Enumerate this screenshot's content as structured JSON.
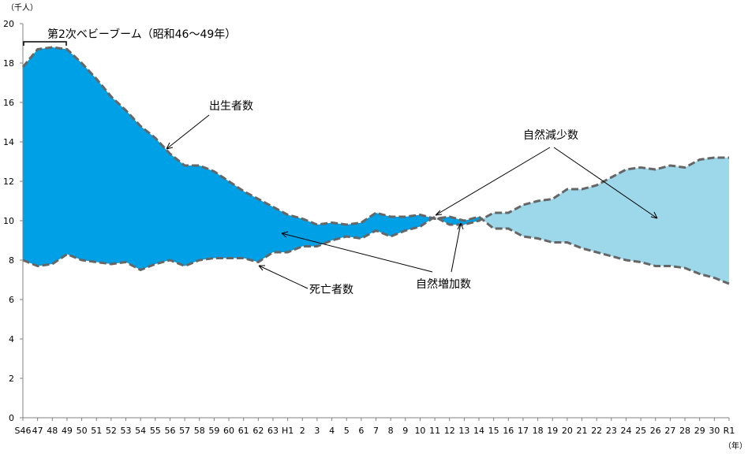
{
  "chart_data": {
    "type": "area",
    "title": "",
    "ylabel": "（千人）",
    "xlabel": "（年）",
    "ylim": [
      0,
      20
    ],
    "yticks": [
      0,
      2,
      4,
      6,
      8,
      10,
      12,
      14,
      16,
      18,
      20
    ],
    "categories": [
      "S46",
      "47",
      "48",
      "49",
      "50",
      "51",
      "52",
      "53",
      "54",
      "55",
      "56",
      "57",
      "58",
      "59",
      "60",
      "61",
      "62",
      "63",
      "H1",
      "2",
      "3",
      "4",
      "5",
      "6",
      "7",
      "8",
      "9",
      "10",
      "11",
      "12",
      "13",
      "14",
      "15",
      "16",
      "17",
      "18",
      "19",
      "20",
      "21",
      "22",
      "23",
      "24",
      "25",
      "26",
      "27",
      "28",
      "29",
      "30",
      "R1"
    ],
    "series": [
      {
        "name": "出生者数",
        "values": [
          17.8,
          18.7,
          18.8,
          18.7,
          18.0,
          17.2,
          16.3,
          15.6,
          14.8,
          14.2,
          13.4,
          12.8,
          12.8,
          12.5,
          12.0,
          11.5,
          11.1,
          10.7,
          10.3,
          10.1,
          9.8,
          9.9,
          9.8,
          9.9,
          10.4,
          10.2,
          10.2,
          10.3,
          10.1,
          10.2,
          10.0,
          10.2,
          9.6,
          9.6,
          9.2,
          9.1,
          8.9,
          8.9,
          8.6,
          8.4,
          8.2,
          8.0,
          7.9,
          7.7,
          7.7,
          7.6,
          7.3,
          7.1,
          6.8
        ]
      },
      {
        "name": "死亡者数",
        "values": [
          8.0,
          7.7,
          7.8,
          8.3,
          8.0,
          7.9,
          7.8,
          7.9,
          7.5,
          7.8,
          8.0,
          7.7,
          8.0,
          8.1,
          8.1,
          8.1,
          7.9,
          8.4,
          8.4,
          8.7,
          8.7,
          9.0,
          9.2,
          9.1,
          9.5,
          9.2,
          9.5,
          9.7,
          10.2,
          9.8,
          9.8,
          10.0,
          10.4,
          10.4,
          10.8,
          11.0,
          11.1,
          11.6,
          11.6,
          11.8,
          12.2,
          12.6,
          12.7,
          12.6,
          12.8,
          12.7,
          13.1,
          13.2,
          13.2
        ]
      }
    ],
    "area_labels": {
      "increase": "自然増加数",
      "decrease": "自然減少数"
    },
    "annotations": {
      "births": "出生者数",
      "deaths": "死亡者数",
      "increase": "自然増加数",
      "decrease": "自然減少数",
      "baby_boom": "第2次ベビーブーム（昭和46～49年）"
    },
    "colors": {
      "increase": "#00a0e6",
      "decrease": "#9cd8ea",
      "line": "#666666",
      "axis": "#808080"
    },
    "legend": "none",
    "grid": false
  }
}
